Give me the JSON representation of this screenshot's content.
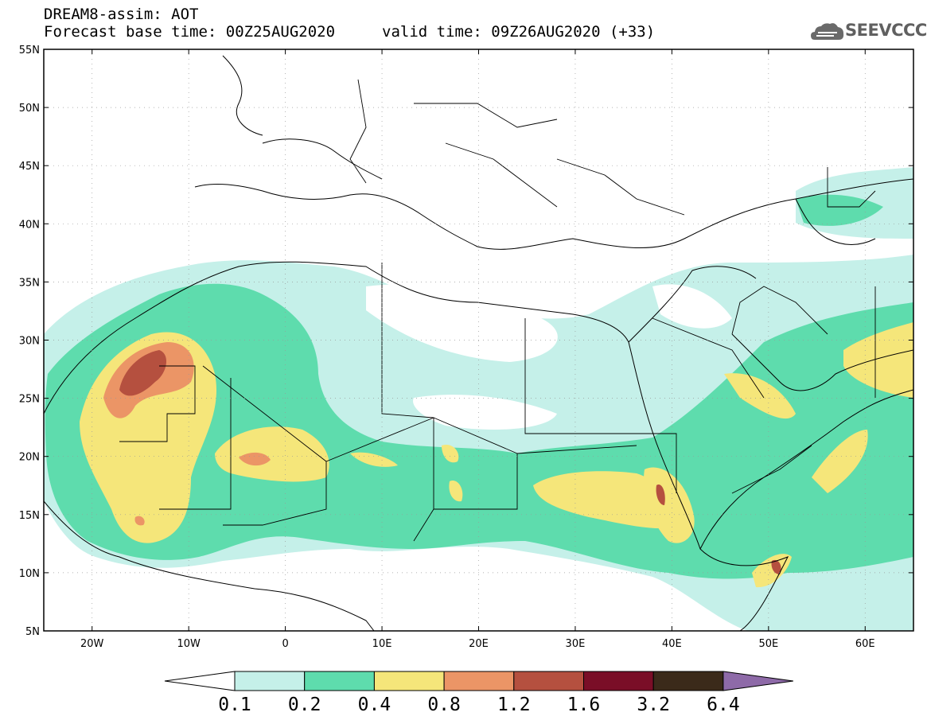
{
  "header": {
    "line1": "DREAM8-assim: AOT",
    "line2": "Forecast base time: 00Z25AUG2020",
    "valid": "valid time: 09Z26AUG2020 (+33)"
  },
  "logo": {
    "text": "SEEVCCC",
    "icon": "cloud-icon"
  },
  "map": {
    "lat_labels": [
      "55N",
      "50N",
      "45N",
      "40N",
      "35N",
      "30N",
      "25N",
      "20N",
      "15N",
      "10N",
      "5N"
    ],
    "lon_labels": [
      "20W",
      "10W",
      "0",
      "10E",
      "20E",
      "30E",
      "40E",
      "50E",
      "60E"
    ],
    "lat_range": [
      5,
      55
    ],
    "lon_range": [
      -25,
      65
    ],
    "field": "AOT"
  },
  "colorbar": {
    "ticks": [
      "0.1",
      "0.2",
      "0.4",
      "0.8",
      "1.2",
      "1.6",
      "3.2",
      "6.4"
    ],
    "colors": [
      "#c5f0e9",
      "#5edcad",
      "#f5e67a",
      "#eb9566",
      "#b5503f",
      "#7a0e27",
      "#3b2a1a",
      "#8e6aa8"
    ]
  }
}
